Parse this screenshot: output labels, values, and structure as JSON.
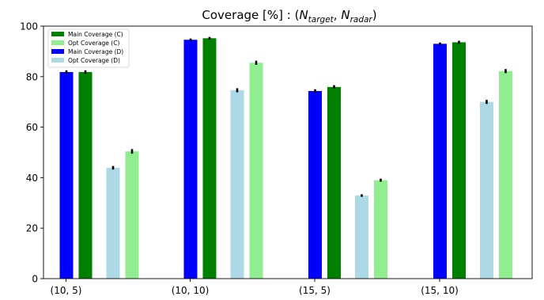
{
  "chart_data": {
    "type": "bar",
    "title": {
      "prefix": "Coverage [%] : (",
      "var1": "N",
      "sub1": "target",
      "sep": ", ",
      "var2": "N",
      "sub2": "radar",
      "suffix": ")"
    },
    "xlabel": "",
    "ylabel": "",
    "categories": [
      "(10, 5)",
      "(10, 10)",
      "(15, 5)",
      "(15, 10)"
    ],
    "ylim": [
      0,
      100
    ],
    "yticks": [
      0,
      20,
      40,
      60,
      80,
      100
    ],
    "grid": false,
    "legend_position": "top-left",
    "legend_order": [
      "Main Coverage (C)",
      "Opt Coverage (C)",
      "Main Coverage (D)",
      "Opt Coverage (D)"
    ],
    "series": [
      {
        "name": "Main Coverage (D)",
        "color": "#0000ff",
        "values": [
          81.8,
          94.6,
          74.3,
          93.0
        ],
        "errors": [
          0.7,
          0.5,
          0.7,
          0.5
        ]
      },
      {
        "name": "Main Coverage (C)",
        "color": "#008000",
        "values": [
          81.8,
          95.2,
          75.9,
          93.6
        ],
        "errors": [
          0.7,
          0.5,
          0.7,
          0.6
        ]
      },
      {
        "name": "Opt Coverage (D)",
        "color": "#add8e6",
        "values": [
          43.9,
          74.6,
          32.9,
          70.0
        ],
        "errors": [
          0.7,
          0.8,
          0.5,
          0.8
        ]
      },
      {
        "name": "Opt Coverage (C)",
        "color": "#90ee90",
        "values": [
          50.4,
          85.5,
          39.0,
          82.2
        ],
        "errors": [
          0.9,
          0.8,
          0.6,
          0.8
        ]
      }
    ]
  }
}
